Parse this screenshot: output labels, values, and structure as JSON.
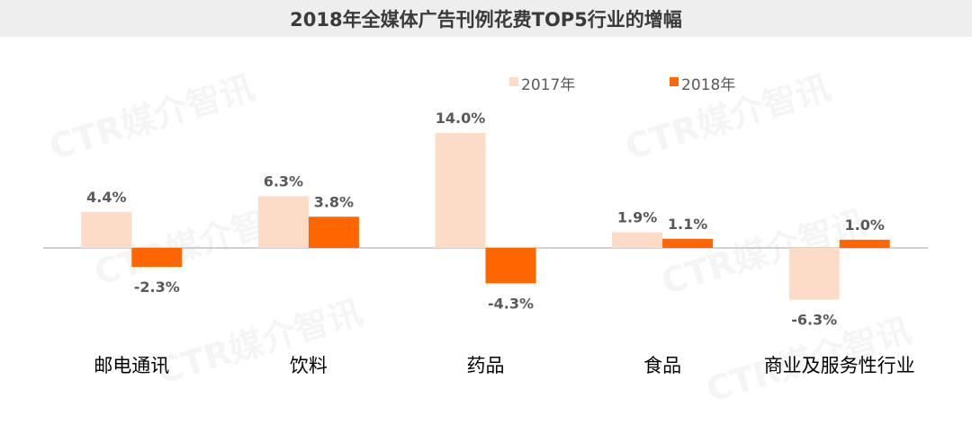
{
  "title": "2018年全媒体广告刊例花费TOP5行业的增幅",
  "watermark": "CTR媒介智讯",
  "colors": {
    "s2017": "#fcdcc7",
    "s2018": "#ff6600",
    "label": "#595959",
    "axis": "#a6a6a6",
    "title_bg": "#eeeeee"
  },
  "chart_data": {
    "type": "bar",
    "title": "2018年全媒体广告刊例花费TOP5行业的增幅",
    "categories": [
      "邮电通讯",
      "饮料",
      "药品",
      "食品",
      "商业及服务性行业"
    ],
    "series": [
      {
        "name": "2017年",
        "values": [
          4.4,
          6.3,
          14.0,
          1.9,
          -6.3
        ],
        "labels": [
          "4.4%",
          "6.3%",
          "14.0%",
          "1.9%",
          "-6.3%"
        ]
      },
      {
        "name": "2018年",
        "values": [
          -2.3,
          3.8,
          -4.3,
          1.1,
          1.0
        ],
        "labels": [
          "-2.3%",
          "3.8%",
          "-4.3%",
          "1.1%",
          "1.0%"
        ]
      }
    ],
    "ylim": [
      -8,
      15
    ],
    "grid": false,
    "legend": "top-right",
    "unit": "%"
  }
}
